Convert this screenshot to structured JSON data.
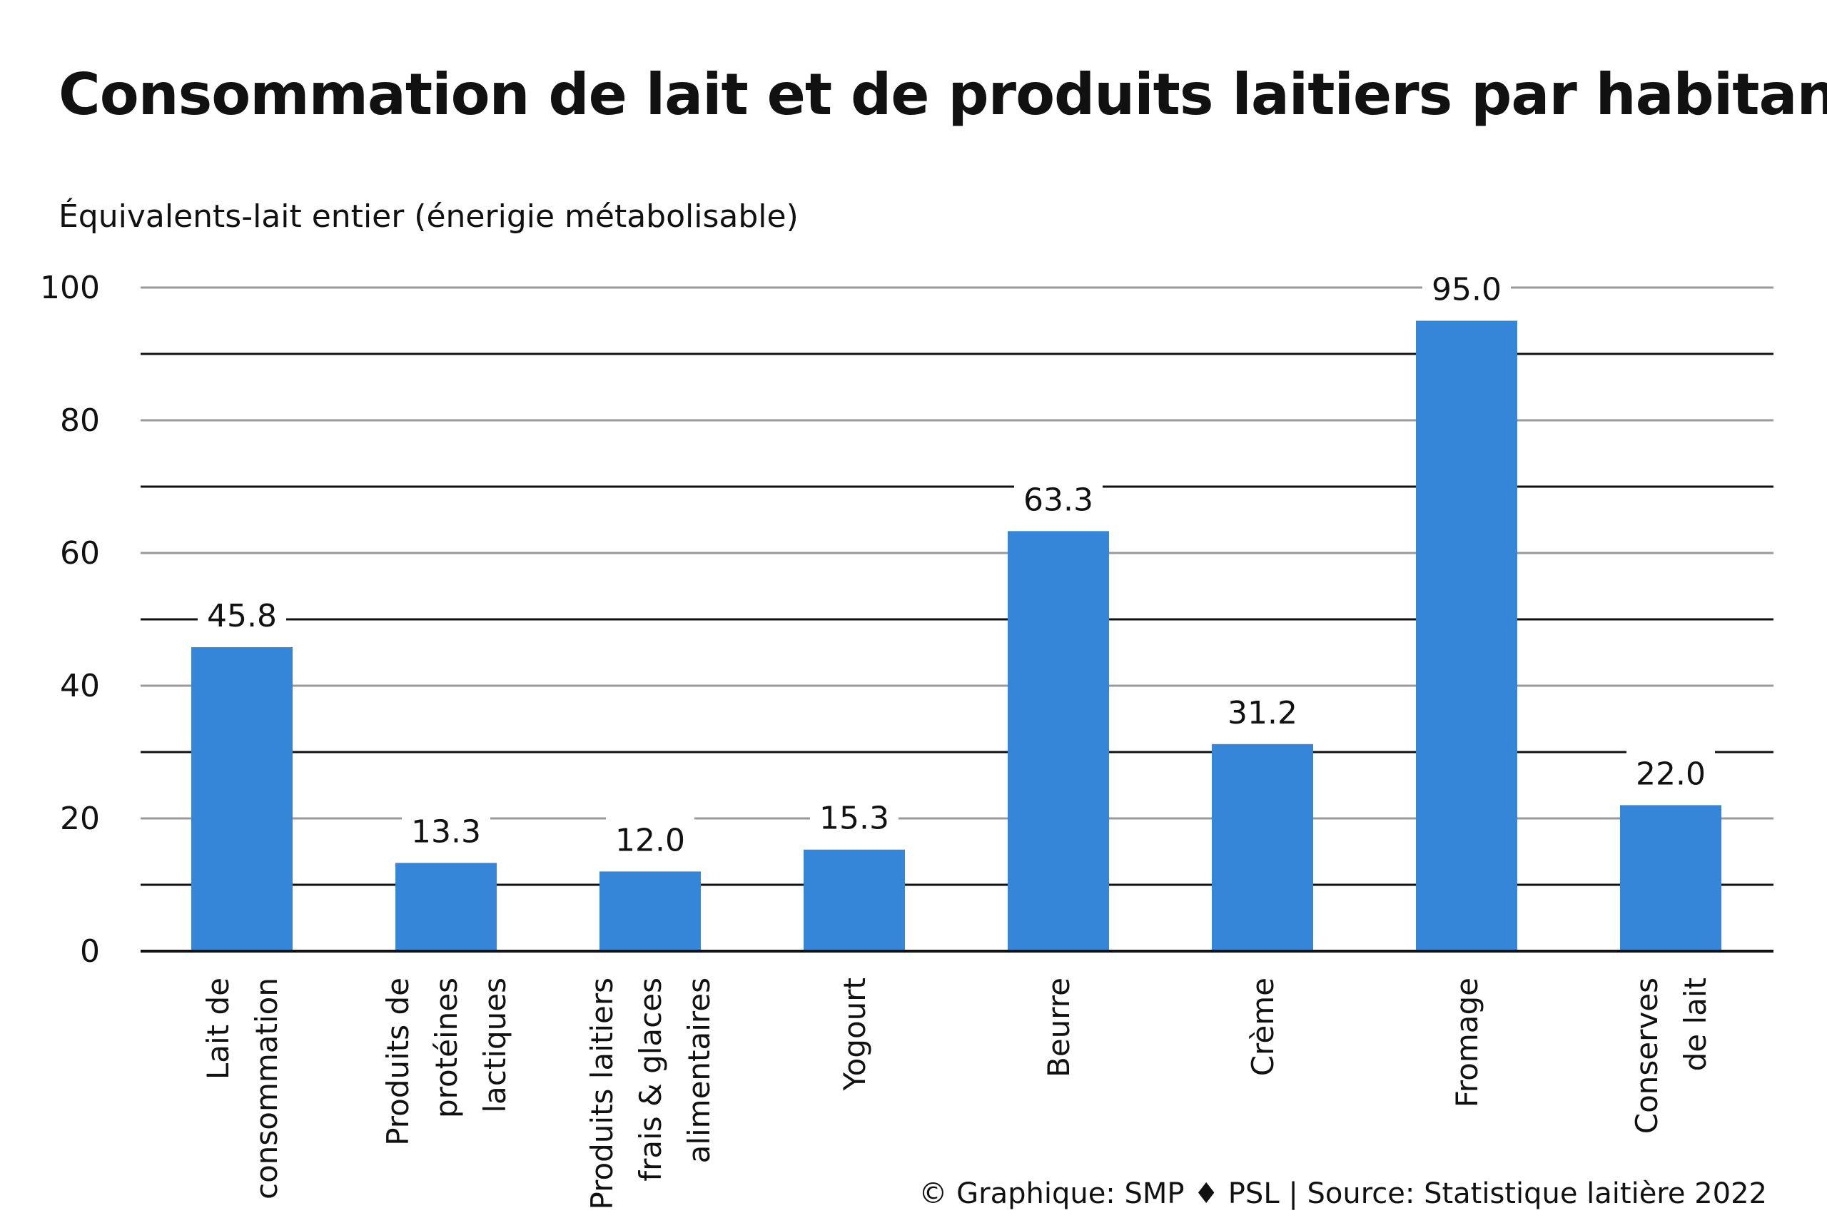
{
  "title": "Consommation de lait et de produits laitiers par habitant",
  "credit": "© Graphique: SMP ♦ PSL | Source: Statistique laitière 2022",
  "colors": {
    "bar": "#3586d8",
    "grid_major": "#9a9a9a",
    "grid_minor": "#111111",
    "axis": "#111111"
  },
  "chart_data": {
    "type": "bar",
    "title": "Consommation de lait et de produits laitiers par habitant",
    "ylabel": "Équivalents-lait entier (énerigie métabolisable)",
    "xlabel": "",
    "ylim": [
      0,
      100
    ],
    "yticks": [
      0,
      20,
      40,
      60,
      80,
      100
    ],
    "grid": true,
    "categories": [
      [
        "Lait de",
        "consommation"
      ],
      [
        "Produits de",
        "protéines",
        "lactiques"
      ],
      [
        "Produits laitiers",
        "frais & glaces",
        "alimentaires"
      ],
      [
        "Yogourt"
      ],
      [
        "Beurre"
      ],
      [
        "Crème"
      ],
      [
        "Fromage"
      ],
      [
        "Conserves",
        "de lait"
      ]
    ],
    "values": [
      45.8,
      13.3,
      12.0,
      15.3,
      63.3,
      31.2,
      95.0,
      22.0
    ],
    "data_labels": [
      "45.8",
      "13.3",
      "12.0",
      "15.3",
      "63.3",
      "31.2",
      "95.0",
      "22.0"
    ]
  }
}
